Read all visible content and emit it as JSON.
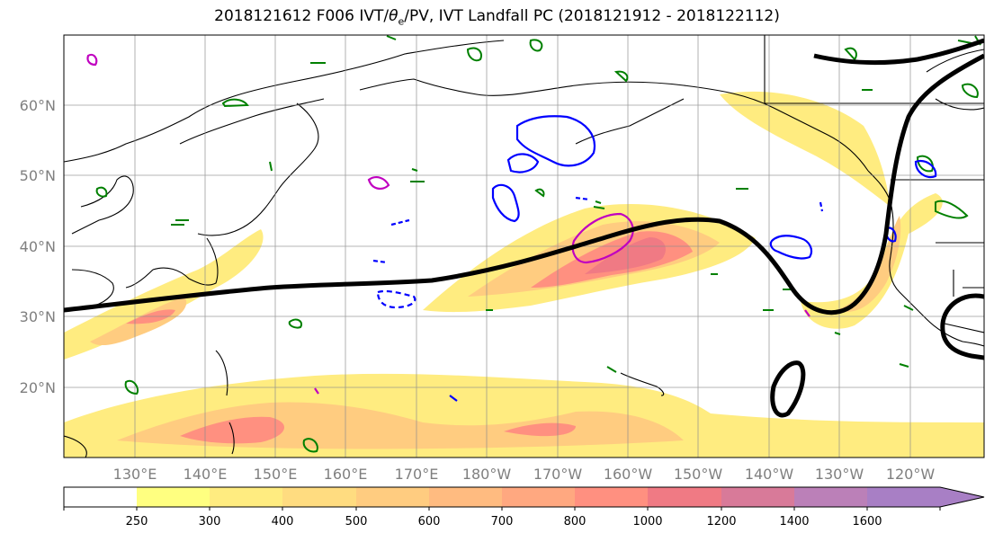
{
  "title_prefix": "2018121612 F006 IVT/",
  "title_theta": "θ",
  "title_theta_sub": "e",
  "title_suffix": "/PV, IVT Landfall PC (2018121912 - 2018122112)",
  "lat_labels": [
    "60°N",
    "50°N",
    "40°N",
    "30°N",
    "20°N"
  ],
  "lon_labels": [
    "130°E",
    "140°E",
    "150°E",
    "160°E",
    "170°E",
    "180°W",
    "170°W",
    "160°W",
    "150°W",
    "140°W",
    "130°W",
    "120°W"
  ],
  "colorbar": {
    "labels": [
      "250",
      "300",
      "400",
      "500",
      "600",
      "700",
      "800",
      "1000",
      "1200",
      "1400",
      "1600"
    ],
    "colors": [
      "#ffffff",
      "#ffff80",
      "#ffec80",
      "#ffdc80",
      "#ffcc80",
      "#ffbb80",
      "#ffa880",
      "#ff9080",
      "#f07a84",
      "#d87a99",
      "#bb80b8",
      "#a87fc5"
    ]
  },
  "colors": {
    "ivt_contour": "#000000",
    "theta_e": "#008000",
    "pv_negative": "#0000ff",
    "pv_positive": "#c000c0"
  }
}
